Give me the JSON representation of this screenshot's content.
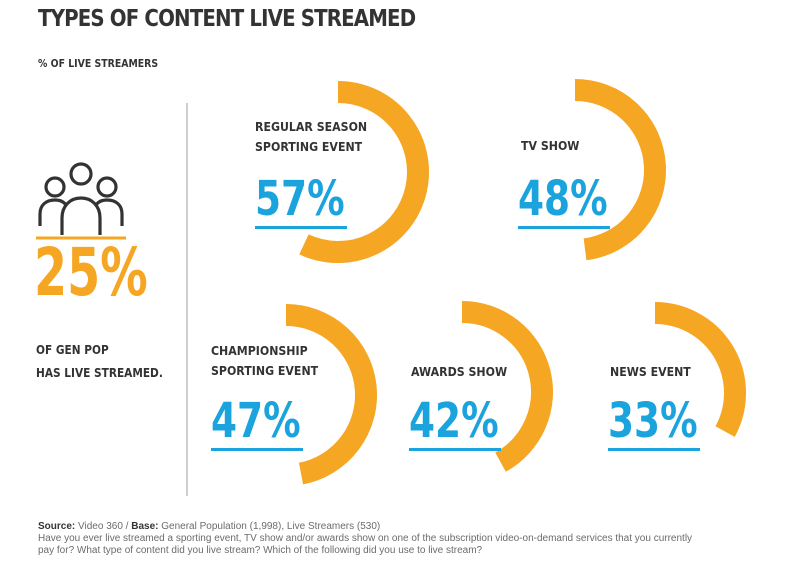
{
  "title": "TYPES OF CONTENT LIVE STREAMED",
  "subtitle": "% OF LIVE STREAMERS",
  "gen_pop": {
    "value": "25%",
    "text_line1": "OF GEN POP",
    "text_line2": "HAS LIVE STREAMED."
  },
  "colors": {
    "arc": "#f5a623",
    "percent": "#1aa3dd",
    "underline": "#1aa3dd",
    "text": "#333333"
  },
  "chart_data": {
    "type": "pie",
    "title": "TYPES OF CONTENT LIVE STREAMED",
    "unit": "% of live streamers",
    "categories": [
      "REGULAR SEASON SPORTING EVENT",
      "TV SHOW",
      "CHAMPIONSHIP SPORTING EVENT",
      "AWARDS SHOW",
      "NEWS EVENT"
    ],
    "values": [
      57,
      48,
      47,
      42,
      33
    ],
    "items": [
      {
        "label_lines": [
          "REGULAR SEASON",
          "SPORTING EVENT"
        ],
        "value": 57,
        "display": "57%"
      },
      {
        "label_lines": [
          "TV SHOW"
        ],
        "value": 48,
        "display": "48%"
      },
      {
        "label_lines": [
          "CHAMPIONSHIP",
          "SPORTING EVENT"
        ],
        "value": 47,
        "display": "47%"
      },
      {
        "label_lines": [
          "AWARDS SHOW"
        ],
        "value": 42,
        "display": "42%"
      },
      {
        "label_lines": [
          "NEWS EVENT"
        ],
        "value": 33,
        "display": "33%"
      }
    ]
  },
  "footer": {
    "source_label": "Source:",
    "source_value": "Video 360 /",
    "base_label": "Base:",
    "base_value": "General Population (1,998), Live Streamers (530)",
    "question_line1": "Have you ever live streamed a sporting event, TV show and/or awards show on one of the subscription video-on-demand services that you currently",
    "question_line2": "pay for? What type of content did you live stream? Which of the following did you use to live stream?"
  }
}
